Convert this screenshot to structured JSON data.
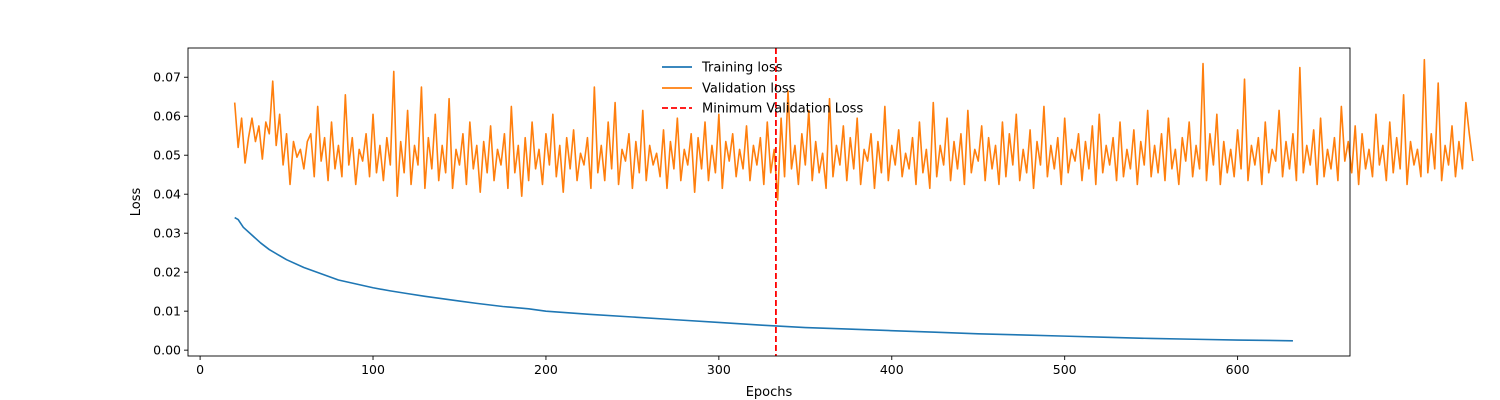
{
  "chart_data": {
    "type": "line",
    "title": "",
    "xlabel": "Epochs",
    "ylabel": "Loss",
    "xlim": [
      -7,
      665
    ],
    "ylim": [
      -0.0015,
      0.0775
    ],
    "x_ticks": [
      0,
      100,
      200,
      300,
      400,
      500,
      600
    ],
    "y_ticks": [
      0.0,
      0.01,
      0.02,
      0.03,
      0.04,
      0.05,
      0.06,
      0.07
    ],
    "x_tick_labels": [
      "0",
      "100",
      "200",
      "300",
      "400",
      "500",
      "600"
    ],
    "y_tick_labels": [
      "0.00",
      "0.01",
      "0.02",
      "0.03",
      "0.04",
      "0.05",
      "0.06",
      "0.07"
    ],
    "grid": false,
    "legend_position": "top-center",
    "series": [
      {
        "name": "Training loss",
        "color": "#1f77b4",
        "style": "solid",
        "x": [
          20,
          22,
          25,
          30,
          35,
          40,
          45,
          50,
          60,
          70,
          80,
          90,
          100,
          110,
          120,
          130,
          140,
          150,
          160,
          175,
          190,
          200,
          225,
          250,
          275,
          300,
          325,
          350,
          375,
          400,
          425,
          450,
          475,
          500,
          525,
          550,
          575,
          600,
          632
        ],
        "y": [
          0.034,
          0.0335,
          0.0315,
          0.0295,
          0.0275,
          0.0258,
          0.0245,
          0.0232,
          0.0212,
          0.0196,
          0.018,
          0.017,
          0.016,
          0.0152,
          0.0145,
          0.0138,
          0.0132,
          0.0126,
          0.012,
          0.0112,
          0.0106,
          0.01,
          0.0092,
          0.0085,
          0.0078,
          0.0071,
          0.0064,
          0.0058,
          0.0054,
          0.005,
          0.0046,
          0.0042,
          0.0039,
          0.0036,
          0.0033,
          0.003,
          0.0028,
          0.0026,
          0.0024
        ]
      },
      {
        "name": "Validation loss",
        "color": "#ff7f0e",
        "style": "solid",
        "x_start": 20,
        "x_step": 2,
        "y": [
          0.0635,
          0.052,
          0.0595,
          0.048,
          0.0545,
          0.0595,
          0.0535,
          0.0575,
          0.049,
          0.0585,
          0.0555,
          0.069,
          0.0525,
          0.0605,
          0.0475,
          0.0555,
          0.0425,
          0.0535,
          0.0495,
          0.0515,
          0.0465,
          0.0535,
          0.0555,
          0.0445,
          0.0625,
          0.0485,
          0.0545,
          0.0435,
          0.0585,
          0.0465,
          0.0525,
          0.0445,
          0.0655,
          0.0475,
          0.0545,
          0.0425,
          0.0515,
          0.0485,
          0.0555,
          0.0445,
          0.0605,
          0.0455,
          0.0525,
          0.0435,
          0.0545,
          0.0475,
          0.0715,
          0.0395,
          0.0535,
          0.0455,
          0.0615,
          0.0425,
          0.0525,
          0.0475,
          0.0675,
          0.0415,
          0.0545,
          0.0465,
          0.0605,
          0.0435,
          0.0525,
          0.0455,
          0.0645,
          0.0415,
          0.0515,
          0.0475,
          0.0555,
          0.0425,
          0.0585,
          0.0465,
          0.0525,
          0.0405,
          0.0535,
          0.0455,
          0.0575,
          0.0435,
          0.0515,
          0.0475,
          0.0555,
          0.0415,
          0.0625,
          0.0455,
          0.0525,
          0.0395,
          0.0545,
          0.0435,
          0.0585,
          0.0465,
          0.0515,
          0.0425,
          0.0555,
          0.0475,
          0.0605,
          0.0445,
          0.0525,
          0.0405,
          0.0545,
          0.0465,
          0.0565,
          0.0435,
          0.0505,
          0.0475,
          0.0545,
          0.0415,
          0.0675,
          0.0455,
          0.0525,
          0.0435,
          0.0585,
          0.0465,
          0.0635,
          0.0425,
          0.0515,
          0.0485,
          0.0555,
          0.0415,
          0.0535,
          0.0455,
          0.0615,
          0.0435,
          0.0525,
          0.0475,
          0.0505,
          0.0445,
          0.0565,
          0.0415,
          0.0535,
          0.0465,
          0.0595,
          0.0435,
          0.0515,
          0.0475,
          0.0555,
          0.0405,
          0.0545,
          0.0465,
          0.0585,
          0.0435,
          0.0525,
          0.0455,
          0.0605,
          0.0415,
          0.0535,
          0.0485,
          0.0555,
          0.0445,
          0.0515,
          0.0465,
          0.0575,
          0.0435,
          0.0525,
          0.0475,
          0.0545,
          0.0425,
          0.0585,
          0.0455,
          0.0515,
          0.0385,
          0.0595,
          0.0445,
          0.0665,
          0.0465,
          0.0525,
          0.0425,
          0.0555,
          0.0475,
          0.0615,
          0.0435,
          0.0535,
          0.0455,
          0.0505,
          0.0415,
          0.0645,
          0.0445,
          0.0525,
          0.0475,
          0.0575,
          0.0435,
          0.0545,
          0.0465,
          0.0595,
          0.0425,
          0.0515,
          0.0485,
          0.0555,
          0.0415,
          0.0535,
          0.0455,
          0.0625,
          0.0435,
          0.0525,
          0.0475,
          0.0565,
          0.0445,
          0.0505,
          0.0465,
          0.0545,
          0.0425,
          0.0585,
          0.0455,
          0.0515,
          0.0415,
          0.0635,
          0.0445,
          0.0525,
          0.0475,
          0.0595,
          0.0435,
          0.0535,
          0.0465,
          0.0555,
          0.0425,
          0.0615,
          0.0455,
          0.0515,
          0.0485,
          0.0575,
          0.0435,
          0.0545,
          0.0465,
          0.0525,
          0.0425,
          0.0585,
          0.0445,
          0.0555,
          0.0475,
          0.0605,
          0.0435,
          0.0515,
          0.0455,
          0.0565,
          0.0415,
          0.0535,
          0.0475,
          0.0625,
          0.0445,
          0.0525,
          0.0465,
          0.0545,
          0.0425,
          0.0595,
          0.0455,
          0.0515,
          0.0485,
          0.0555,
          0.0435,
          0.0535,
          0.0465,
          0.0575,
          0.0425,
          0.0605,
          0.0455,
          0.0525,
          0.0475,
          0.0545,
          0.0435,
          0.0585,
          0.0445,
          0.0515,
          0.0465,
          0.0565,
          0.0425,
          0.0535,
          0.0475,
          0.0615,
          0.0445,
          0.0525,
          0.0455,
          0.0555,
          0.0435,
          0.0595,
          0.0465,
          0.0515,
          0.0425,
          0.0545,
          0.0485,
          0.0585,
          0.0445,
          0.0525,
          0.0465,
          0.0735,
          0.0435,
          0.0555,
          0.0475,
          0.0605,
          0.0425,
          0.0535,
          0.0455,
          0.0515,
          0.0445,
          0.0565,
          0.0465,
          0.0695,
          0.0435,
          0.0525,
          0.0475,
          0.0545,
          0.0425,
          0.0585,
          0.0455,
          0.0515,
          0.0485,
          0.0615,
          0.0445,
          0.0535,
          0.0465,
          0.0555,
          0.0435,
          0.0725,
          0.0455,
          0.0525,
          0.0475,
          0.0565,
          0.0425,
          0.0595,
          0.0445,
          0.0515,
          0.0465,
          0.0545,
          0.0435,
          0.0625,
          0.0485,
          0.0535,
          0.0455,
          0.0575,
          0.0425,
          0.0555,
          0.0465,
          0.0515,
          0.0445,
          0.0605,
          0.0475,
          0.0525,
          0.0435,
          0.0585,
          0.0455,
          0.0545,
          0.0465,
          0.0655,
          0.0425,
          0.0535,
          0.0475,
          0.0515,
          0.0445,
          0.0745,
          0.0455,
          0.0555,
          0.0465,
          0.0685,
          0.0435,
          0.0525,
          0.0475,
          0.0575,
          0.0445,
          0.0535,
          0.0465,
          0.0635,
          0.0555,
          0.0485
        ]
      }
    ],
    "vlines": [
      {
        "name": "Minimum Validation Loss",
        "x": 333,
        "color": "#ff0000",
        "style": "dashed"
      }
    ]
  }
}
